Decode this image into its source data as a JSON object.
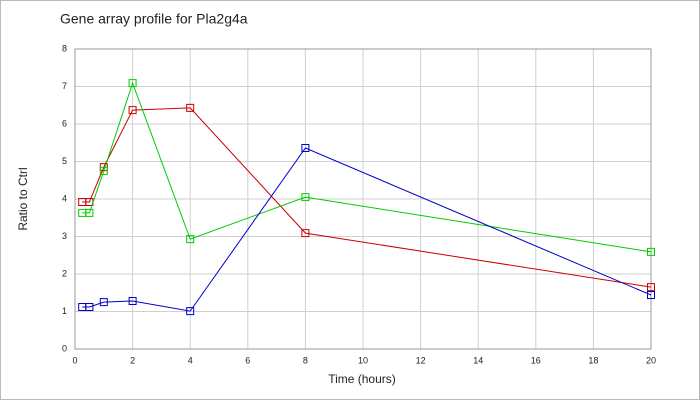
{
  "chart_data": {
    "type": "line",
    "title": "Gene array profile for Pla2g4a",
    "xlabel": "Time (hours)",
    "ylabel": "Ratio to Ctrl",
    "x": [
      0.25,
      0.5,
      1,
      2,
      4,
      8,
      20
    ],
    "series": [
      {
        "color": "#cc0000",
        "values": [
          3.92,
          3.92,
          4.85,
          6.37,
          6.43,
          3.09,
          1.65
        ]
      },
      {
        "color": "#00cc00",
        "values": [
          3.63,
          3.63,
          4.75,
          7.09,
          2.93,
          4.05,
          2.59
        ]
      },
      {
        "color": "#0000cc",
        "values": [
          1.12,
          1.12,
          1.25,
          1.28,
          1.01,
          5.36,
          1.44
        ]
      }
    ],
    "xlim": [
      0,
      20
    ],
    "xticks": [
      0,
      2,
      4,
      6,
      8,
      10,
      12,
      14,
      16,
      18,
      20
    ],
    "ylim": [
      0,
      8
    ],
    "yticks": [
      0,
      1,
      2,
      3,
      4,
      5,
      6,
      7,
      8
    ],
    "grid": true,
    "marker": "square"
  }
}
